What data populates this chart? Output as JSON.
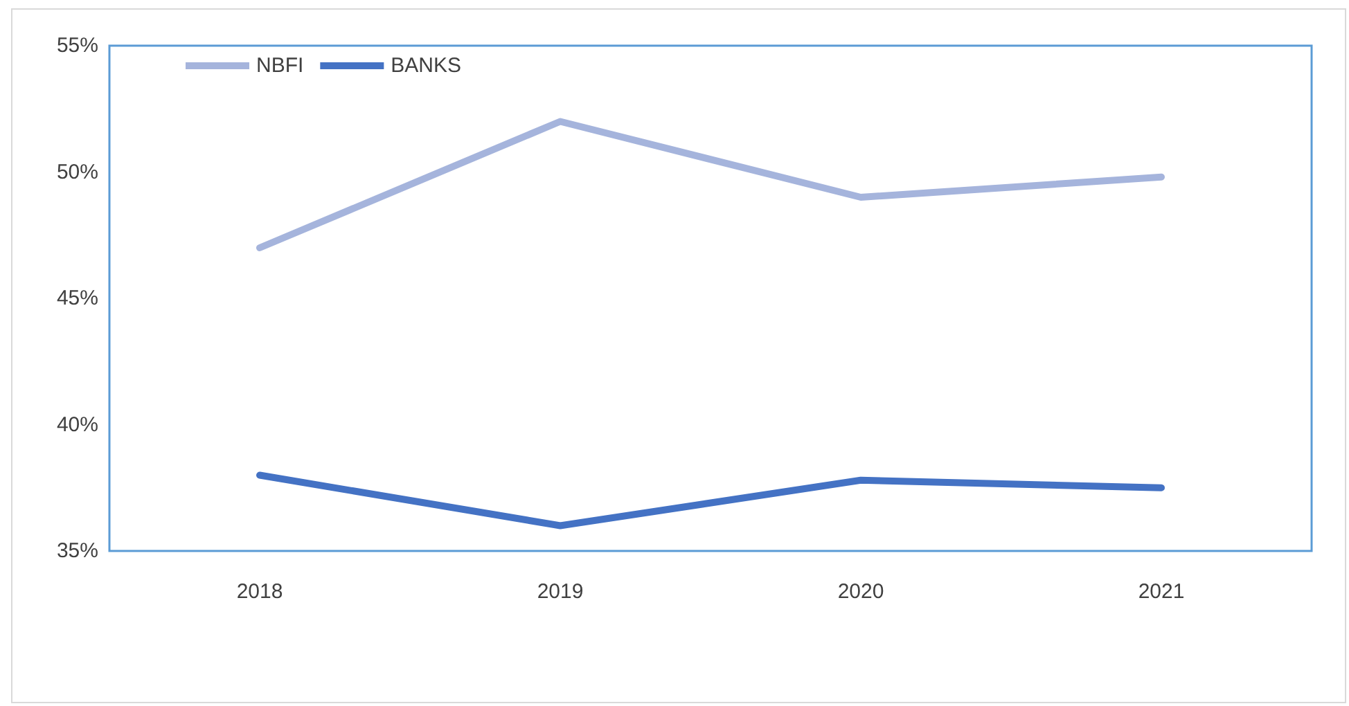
{
  "chart_data": {
    "type": "line",
    "categories": [
      "2018",
      "2019",
      "2020",
      "2021"
    ],
    "series": [
      {
        "name": "NBFI",
        "color": "#a5b4dc",
        "values": [
          47,
          52,
          49,
          49.8
        ]
      },
      {
        "name": "BANKS",
        "color": "#4472c4",
        "values": [
          38,
          36,
          37.8,
          37.5
        ]
      }
    ],
    "ylim": [
      35,
      55
    ],
    "yticks": [
      {
        "value": 35,
        "label": "35%"
      },
      {
        "value": 40,
        "label": "40%"
      },
      {
        "value": 45,
        "label": "45%"
      },
      {
        "value": 50,
        "label": "50%"
      },
      {
        "value": 55,
        "label": "55%"
      }
    ],
    "grid": false,
    "legend": "top left",
    "marker": "none",
    "line_style": "solid"
  }
}
